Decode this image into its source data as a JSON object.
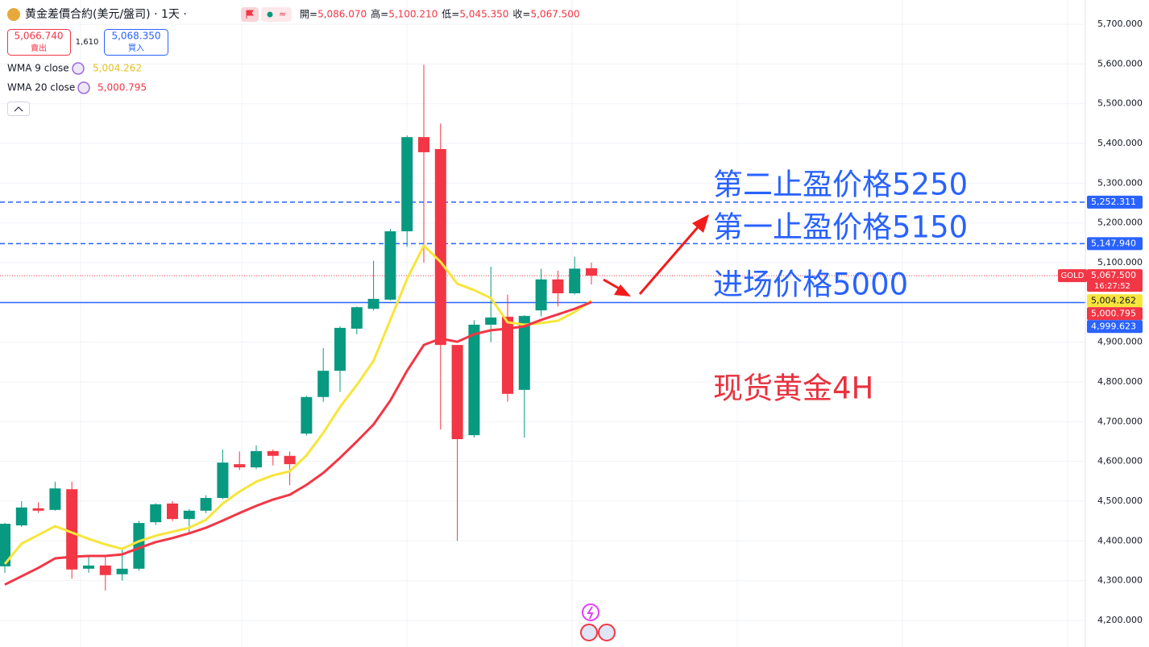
{
  "chart_data": {
    "type": "candlestick",
    "title": "黄金差價合約(美元/盤司) · 1天 ·",
    "ohlc_legend": [
      {
        "key": "開=",
        "text": "5,086.070"
      },
      {
        "key": "高=",
        "text": "5,100.210"
      },
      {
        "key": "低=",
        "text": "5,045.350"
      },
      {
        "key": "收=",
        "text": "5,067.500"
      }
    ],
    "sell": {
      "price": "5,066.740",
      "label": "賣出"
    },
    "spread": "1,610",
    "buy": {
      "price": "5,068.350",
      "label": "買入"
    },
    "open": [
      4336,
      4439,
      4482,
      4478,
      4530,
      4330,
      4338,
      4316,
      4330,
      4447,
      4494,
      4455,
      4476,
      4508,
      4593,
      4585,
      4626,
      4614,
      4670,
      4762,
      4828,
      4934,
      4984,
      5007,
      5179,
      5416,
      5386,
      4893,
      4666,
      4944,
      4964,
      4780,
      4980,
      5058,
      5023,
      5086.07
    ],
    "high": [
      4445,
      4500,
      4497,
      4549,
      4549,
      4360,
      4362,
      4380,
      4450,
      4495,
      4500,
      4480,
      4515,
      4630,
      4625,
      4640,
      4630,
      4625,
      4765,
      4885,
      4940,
      4990,
      5105,
      5185,
      5420,
      5598,
      5450,
      4893,
      4955,
      5090,
      5020,
      4968,
      5085,
      5080,
      5115,
      5100.21
    ],
    "low": [
      4320,
      4435,
      4470,
      4476,
      4305,
      4320,
      4275,
      4300,
      4325,
      4440,
      4450,
      4420,
      4470,
      4505,
      4578,
      4580,
      4590,
      4540,
      4665,
      4750,
      4775,
      4920,
      4980,
      5005,
      5140,
      5100,
      4680,
      4400,
      4660,
      4900,
      4750,
      4660,
      4965,
      4990,
      5020,
      5045.35
    ],
    "close": [
      4443,
      4484,
      4476,
      4532,
      4328,
      4338,
      4314,
      4330,
      4445,
      4492,
      4455,
      4476,
      4508,
      4597,
      4585,
      4626,
      4614,
      4593,
      4762,
      4828,
      4936,
      4988,
      5009,
      5179,
      5416,
      5378,
      4893,
      4656,
      4944,
      4962,
      4770,
      4966,
      5058,
      5023,
      5085,
      5067.5
    ],
    "up_color": "#089981",
    "down_color": "#f23645",
    "overlays": [
      {
        "name": "WMA 9 close",
        "color": "#f7e53b",
        "last_label": "5,004.262",
        "values": [
          4342,
          4393,
          4415,
          4437,
          4421,
          4405,
          4391,
          4380,
          4399,
          4413,
          4423,
          4433,
          4453,
          4494,
          4524,
          4549,
          4565,
          4575,
          4615,
          4672,
          4737,
          4792,
          4853,
          4956,
          5059,
          5143,
          5102,
          5047,
          5031,
          5011,
          4950,
          4944,
          4948,
          4954,
          4976,
          5004.262
        ]
      },
      {
        "name": "WMA 20 close",
        "color": "#f23645",
        "last_label": "5,000.795",
        "values": [
          4290,
          4311,
          4332,
          4356,
          4360,
          4362,
          4362,
          4366,
          4382,
          4397,
          4407,
          4419,
          4433,
          4451,
          4470,
          4488,
          4504,
          4516,
          4541,
          4571,
          4609,
          4650,
          4693,
          4753,
          4828,
          4893,
          4909,
          4901,
          4920,
          4930,
          4934,
          4940,
          4956,
          4970,
          4984,
          5000.795
        ]
      }
    ],
    "price_lines": [
      {
        "value": 5252.311,
        "label": "5,252.311",
        "color": "#2962ff",
        "style": "dashed"
      },
      {
        "value": 5147.94,
        "label": "5,147.940",
        "color": "#2962ff",
        "style": "dashed"
      },
      {
        "value": 4999.623,
        "label": "4,999.623",
        "color": "#2962ff",
        "style": "solid"
      }
    ],
    "last_price": {
      "value": 5067.5,
      "label": "5,067.500",
      "symbol": "GOLD",
      "countdown": "16:27:52",
      "color": "#f23645"
    },
    "ylim": [
      4133,
      5761
    ],
    "yticks": [
      {
        "value": 4200,
        "label": "4,200.000"
      },
      {
        "value": 4300,
        "label": "4,300.000"
      },
      {
        "value": 4400,
        "label": "4,400.000"
      },
      {
        "value": 4500,
        "label": "4,500.000"
      },
      {
        "value": 4600,
        "label": "4,600.000"
      },
      {
        "value": 4700,
        "label": "4,700.000"
      },
      {
        "value": 4800,
        "label": "4,800.000"
      },
      {
        "value": 4900,
        "label": "4,900.000"
      },
      {
        "value": 5000,
        "label": "5,000.000"
      },
      {
        "value": 5100,
        "label": "5,100.000"
      },
      {
        "value": 5200,
        "label": "5,200.000"
      },
      {
        "value": 5300,
        "label": "5,300.000"
      },
      {
        "value": 5400,
        "label": "5,400.000"
      },
      {
        "value": 5500,
        "label": "5,500.000"
      },
      {
        "value": 5600,
        "label": "5,600.000"
      },
      {
        "value": 5700,
        "label": "5,700.000"
      }
    ],
    "grid": true,
    "annotations": [
      {
        "text": "第二止盈价格5250",
        "color": "#2962ff"
      },
      {
        "text": "第一止盈价格5150",
        "color": "#2962ff"
      },
      {
        "text": "进场价格5000",
        "color": "#2962ff"
      },
      {
        "text": "现货黄金4H",
        "color": "#e8323f"
      }
    ]
  }
}
